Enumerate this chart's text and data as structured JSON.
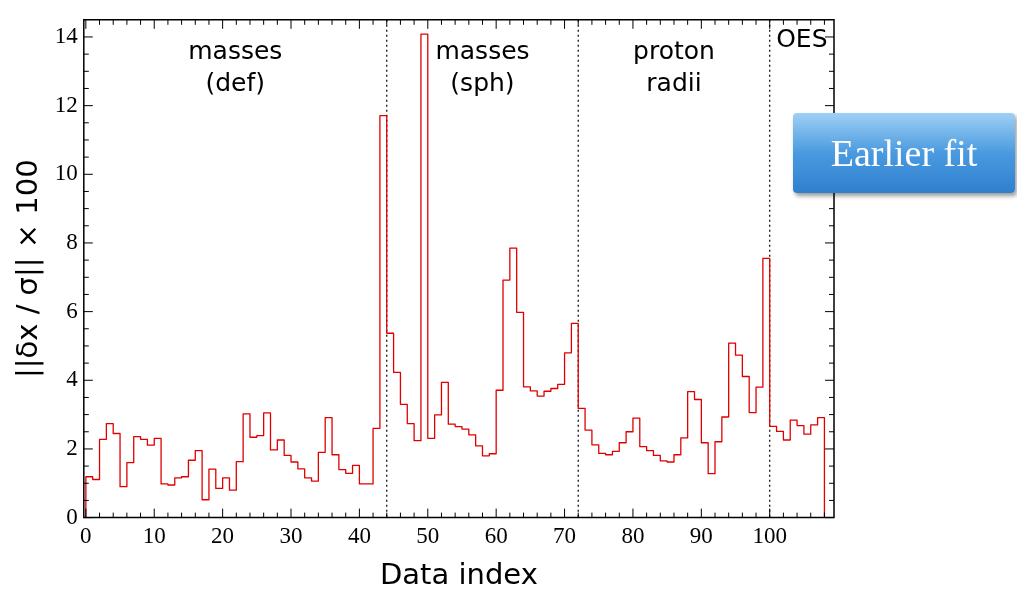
{
  "chart_data": {
    "type": "histogram",
    "xlabel": "Data index",
    "ylabel": "||δx / σ|| × 100",
    "color": "#e00000",
    "bins": [
      0,
      1,
      2,
      3,
      4,
      5,
      6,
      7,
      8,
      9,
      10,
      11,
      12,
      13,
      14,
      15,
      16,
      17,
      18,
      19,
      20,
      21,
      22,
      23,
      24,
      25,
      26,
      27,
      28,
      29,
      30,
      31,
      32,
      33,
      34,
      35,
      36,
      37,
      38,
      39,
      40,
      41,
      42,
      43,
      44,
      45,
      46,
      47,
      48,
      49,
      50,
      51,
      52,
      53,
      54,
      55,
      56,
      57,
      58,
      59,
      60,
      61,
      62,
      63,
      64,
      65,
      66,
      67,
      68,
      69,
      70,
      71,
      72,
      73,
      74,
      75,
      76,
      77,
      78,
      79,
      80,
      81,
      82,
      83,
      84,
      85,
      86,
      87,
      88,
      89,
      90,
      91,
      92,
      93,
      94,
      95,
      96,
      97,
      98,
      99,
      100,
      101,
      102,
      103,
      104,
      105,
      106,
      107,
      108
    ],
    "values": [
      1.19,
      1.11,
      2.28,
      2.74,
      2.45,
      0.9,
      1.6,
      2.36,
      2.28,
      2.11,
      2.31,
      0.98,
      0.95,
      1.16,
      1.19,
      1.67,
      1.95,
      0.52,
      1.41,
      0.85,
      1.16,
      0.8,
      1.63,
      3.02,
      2.34,
      2.39,
      3.05,
      1.97,
      2.26,
      1.81,
      1.62,
      1.42,
      1.16,
      1.06,
      1.9,
      2.91,
      1.83,
      1.4,
      1.29,
      1.52,
      0.98,
      0.98,
      2.6,
      11.71,
      5.37,
      4.23,
      3.3,
      2.74,
      2.24,
      14.08,
      2.31,
      2.99,
      3.94,
      2.72,
      2.65,
      2.58,
      2.41,
      2.09,
      1.8,
      1.86,
      3.71,
      6.92,
      7.85,
      5.98,
      3.81,
      3.69,
      3.54,
      3.68,
      3.76,
      3.88,
      4.8,
      5.66,
      3.18,
      2.55,
      2.12,
      1.87,
      1.83,
      1.93,
      2.18,
      2.5,
      2.9,
      2.07,
      1.95,
      1.81,
      1.65,
      1.62,
      1.83,
      2.32,
      3.67,
      3.44,
      2.18,
      1.28,
      2.21,
      2.93,
      5.08,
      4.73,
      4.11,
      3.06,
      3.8,
      7.55,
      2.66,
      2.51,
      2.26,
      2.84,
      2.68,
      2.43,
      2.7,
      2.91
    ],
    "xlim": [
      -0.3,
      109.4
    ],
    "ylim": [
      0,
      14.5
    ],
    "xticks": [
      0,
      {
        "value": 2,
        "label": null
      },
      {
        "value": 4,
        "label": null
      },
      {
        "value": 6,
        "label": null
      },
      {
        "value": 8,
        "label": null
      },
      10,
      {
        "value": 12,
        "label": null
      },
      {
        "value": 14,
        "label": null
      },
      {
        "value": 16,
        "label": null
      },
      {
        "value": 18,
        "label": null
      },
      20,
      {
        "value": 22,
        "label": null
      },
      {
        "value": 24,
        "label": null
      },
      {
        "value": 26,
        "label": null
      },
      {
        "value": 28,
        "label": null
      },
      30,
      {
        "value": 32,
        "label": null
      },
      {
        "value": 34,
        "label": null
      },
      {
        "value": 36,
        "label": null
      },
      {
        "value": 38,
        "label": null
      },
      40,
      {
        "value": 42,
        "label": null
      },
      {
        "value": 44,
        "label": null
      },
      {
        "value": 46,
        "label": null
      },
      {
        "value": 48,
        "label": null
      },
      50,
      {
        "value": 52,
        "label": null
      },
      {
        "value": 54,
        "label": null
      },
      {
        "value": 56,
        "label": null
      },
      {
        "value": 58,
        "label": null
      },
      60,
      {
        "value": 62,
        "label": null
      },
      {
        "value": 64,
        "label": null
      },
      {
        "value": 66,
        "label": null
      },
      {
        "value": 68,
        "label": null
      },
      70,
      {
        "value": 72,
        "label": null
      },
      {
        "value": 74,
        "label": null
      },
      {
        "value": 76,
        "label": null
      },
      {
        "value": 78,
        "label": null
      },
      80,
      {
        "value": 82,
        "label": null
      },
      {
        "value": 84,
        "label": null
      },
      {
        "value": 86,
        "label": null
      },
      {
        "value": 88,
        "label": null
      },
      90,
      {
        "value": 92,
        "label": null
      },
      {
        "value": 94,
        "label": null
      },
      {
        "value": 96,
        "label": null
      },
      {
        "value": 98,
        "label": null
      },
      100,
      {
        "value": 102,
        "label": null
      },
      {
        "value": 104,
        "label": null
      },
      {
        "value": 106,
        "label": null
      },
      {
        "value": 108,
        "label": null
      }
    ],
    "yticks": [
      0,
      {
        "value": 0.5,
        "label": null
      },
      {
        "value": 1,
        "label": null
      },
      {
        "value": 1.5,
        "label": null
      },
      2,
      {
        "value": 2.5,
        "label": null
      },
      {
        "value": 3,
        "label": null
      },
      {
        "value": 3.5,
        "label": null
      },
      4,
      {
        "value": 4.5,
        "label": null
      },
      {
        "value": 5,
        "label": null
      },
      {
        "value": 5.5,
        "label": null
      },
      6,
      {
        "value": 6.5,
        "label": null
      },
      {
        "value": 7,
        "label": null
      },
      {
        "value": 7.5,
        "label": null
      },
      8,
      {
        "value": 8.5,
        "label": null
      },
      {
        "value": 9,
        "label": null
      },
      {
        "value": 9.5,
        "label": null
      },
      10,
      {
        "value": 10.5,
        "label": null
      },
      {
        "value": 11,
        "label": null
      },
      {
        "value": 11.5,
        "label": null
      },
      12,
      {
        "value": 12.5,
        "label": null
      },
      {
        "value": 13,
        "label": null
      },
      {
        "value": 13.5,
        "label": null
      },
      14
    ],
    "ref_lines": [
      {
        "axis": "x",
        "value": 44,
        "color": "#000000",
        "line_style": "dotted"
      },
      {
        "axis": "x",
        "value": 72,
        "color": "#000000",
        "line_style": "dotted"
      },
      {
        "axis": "x",
        "value": 100,
        "color": "#000000",
        "line_style": "dotted"
      }
    ],
    "annotations": [
      "masses\n(def)",
      "masses\n(sph)",
      "proton\nradii",
      "OES",
      "Earlier fit"
    ],
    "grid": false,
    "legend": false
  }
}
